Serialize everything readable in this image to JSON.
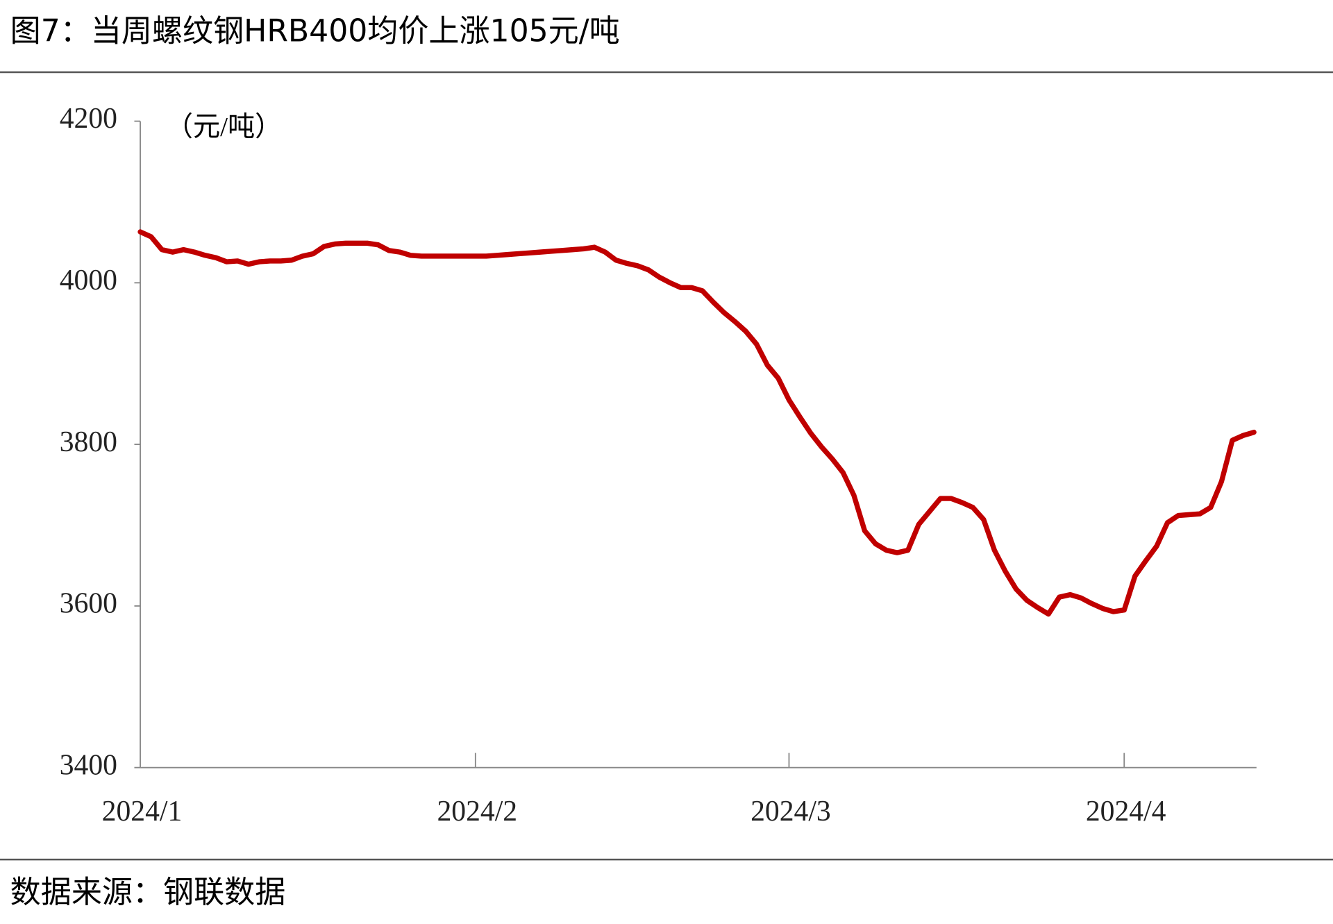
{
  "chart_data": {
    "type": "line",
    "title": "图7：当周螺纹钢HRB400均价上涨105元/吨",
    "y_label": "（元/吨）",
    "source": "数据来源：钢联数据",
    "categories": [
      "2024/1",
      null,
      null,
      null,
      null,
      null,
      null,
      null,
      null,
      null,
      null,
      null,
      null,
      null,
      null,
      null,
      null,
      null,
      null,
      null,
      null,
      null,
      null,
      null,
      null,
      null,
      null,
      null,
      null,
      null,
      null,
      "2024/2",
      null,
      null,
      null,
      null,
      null,
      null,
      null,
      null,
      null,
      null,
      null,
      null,
      null,
      null,
      null,
      null,
      null,
      null,
      null,
      null,
      null,
      null,
      null,
      null,
      null,
      null,
      null,
      null,
      "2024/3",
      null,
      null,
      null,
      null,
      null,
      null,
      null,
      null,
      null,
      null,
      null,
      null,
      null,
      null,
      null,
      null,
      null,
      null,
      null,
      null,
      null,
      null,
      null,
      null,
      null,
      null,
      null,
      null,
      null,
      null,
      "2024/4",
      null,
      null,
      null,
      null,
      null,
      null,
      null,
      null,
      null,
      null,
      null,
      null
    ],
    "series": [
      {
        "name": "螺纹钢HRB400均价",
        "color": "#c00000",
        "values": [
          4063,
          4057,
          4041,
          4038,
          4041,
          4038,
          4034,
          4031,
          4026,
          4027,
          4023,
          4026,
          4027,
          4027,
          4028,
          4033,
          4036,
          4045,
          4048,
          4049,
          4049,
          4049,
          4047,
          4040,
          4038,
          4034,
          4033,
          4033,
          4033,
          4033,
          4033,
          4033,
          4033,
          4034,
          4035,
          4036,
          4037,
          4038,
          4039,
          4040,
          4041,
          4042,
          4044,
          4038,
          4028,
          4024,
          4021,
          4016,
          4007,
          4000,
          3994,
          3994,
          3990,
          3976,
          3963,
          3952,
          3940,
          3924,
          3898,
          3882,
          3855,
          3834,
          3814,
          3797,
          3782,
          3765,
          3737,
          3693,
          3677,
          3669,
          3666,
          3669,
          3701,
          3717,
          3733,
          3733,
          3728,
          3722,
          3707,
          3669,
          3643,
          3621,
          3607,
          3598,
          3590,
          3611,
          3614,
          3610,
          3603,
          3597,
          3593,
          3595,
          3637,
          3656,
          3674,
          3703,
          3712,
          3713,
          3714,
          3722,
          3754,
          3805,
          3811,
          3815
        ]
      }
    ],
    "ylim": [
      3400,
      4200
    ],
    "yticks": [
      3400,
      3600,
      3800,
      4000,
      4200
    ]
  }
}
